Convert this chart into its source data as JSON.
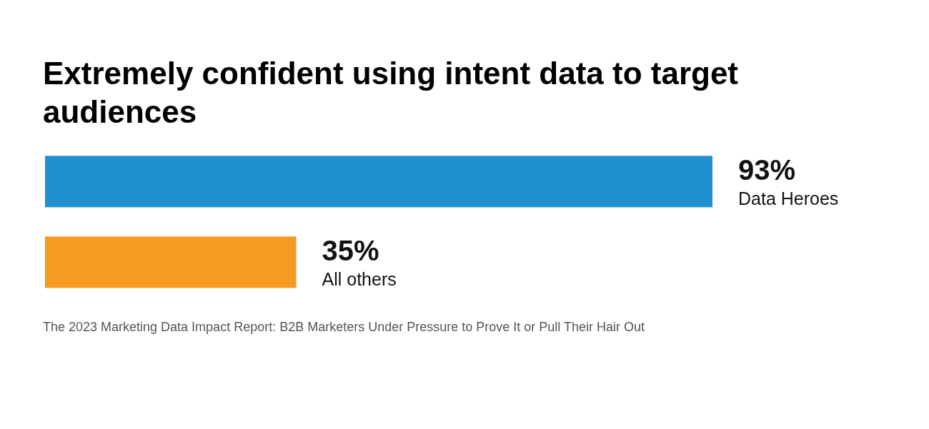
{
  "chart_data": {
    "type": "bar",
    "orientation": "horizontal",
    "stacked": true,
    "title": "Extremely confident using intent data to target audiences",
    "categories": [
      null,
      null
    ],
    "series": [
      {
        "name": "Data Heroes",
        "color": "#1f8fce",
        "values": [
          93,
          null
        ],
        "value_labels": [
          "93%",
          null
        ]
      },
      {
        "name": "All others",
        "color": "#f59a23",
        "values": [
          null,
          35
        ],
        "value_labels": [
          null,
          "35%"
        ]
      }
    ],
    "annotations": [
      "The 2023 Marketing Data Impact Report: B2B Marketers Under Pressure to Prove It or Pull Their Hair Out"
    ]
  }
}
